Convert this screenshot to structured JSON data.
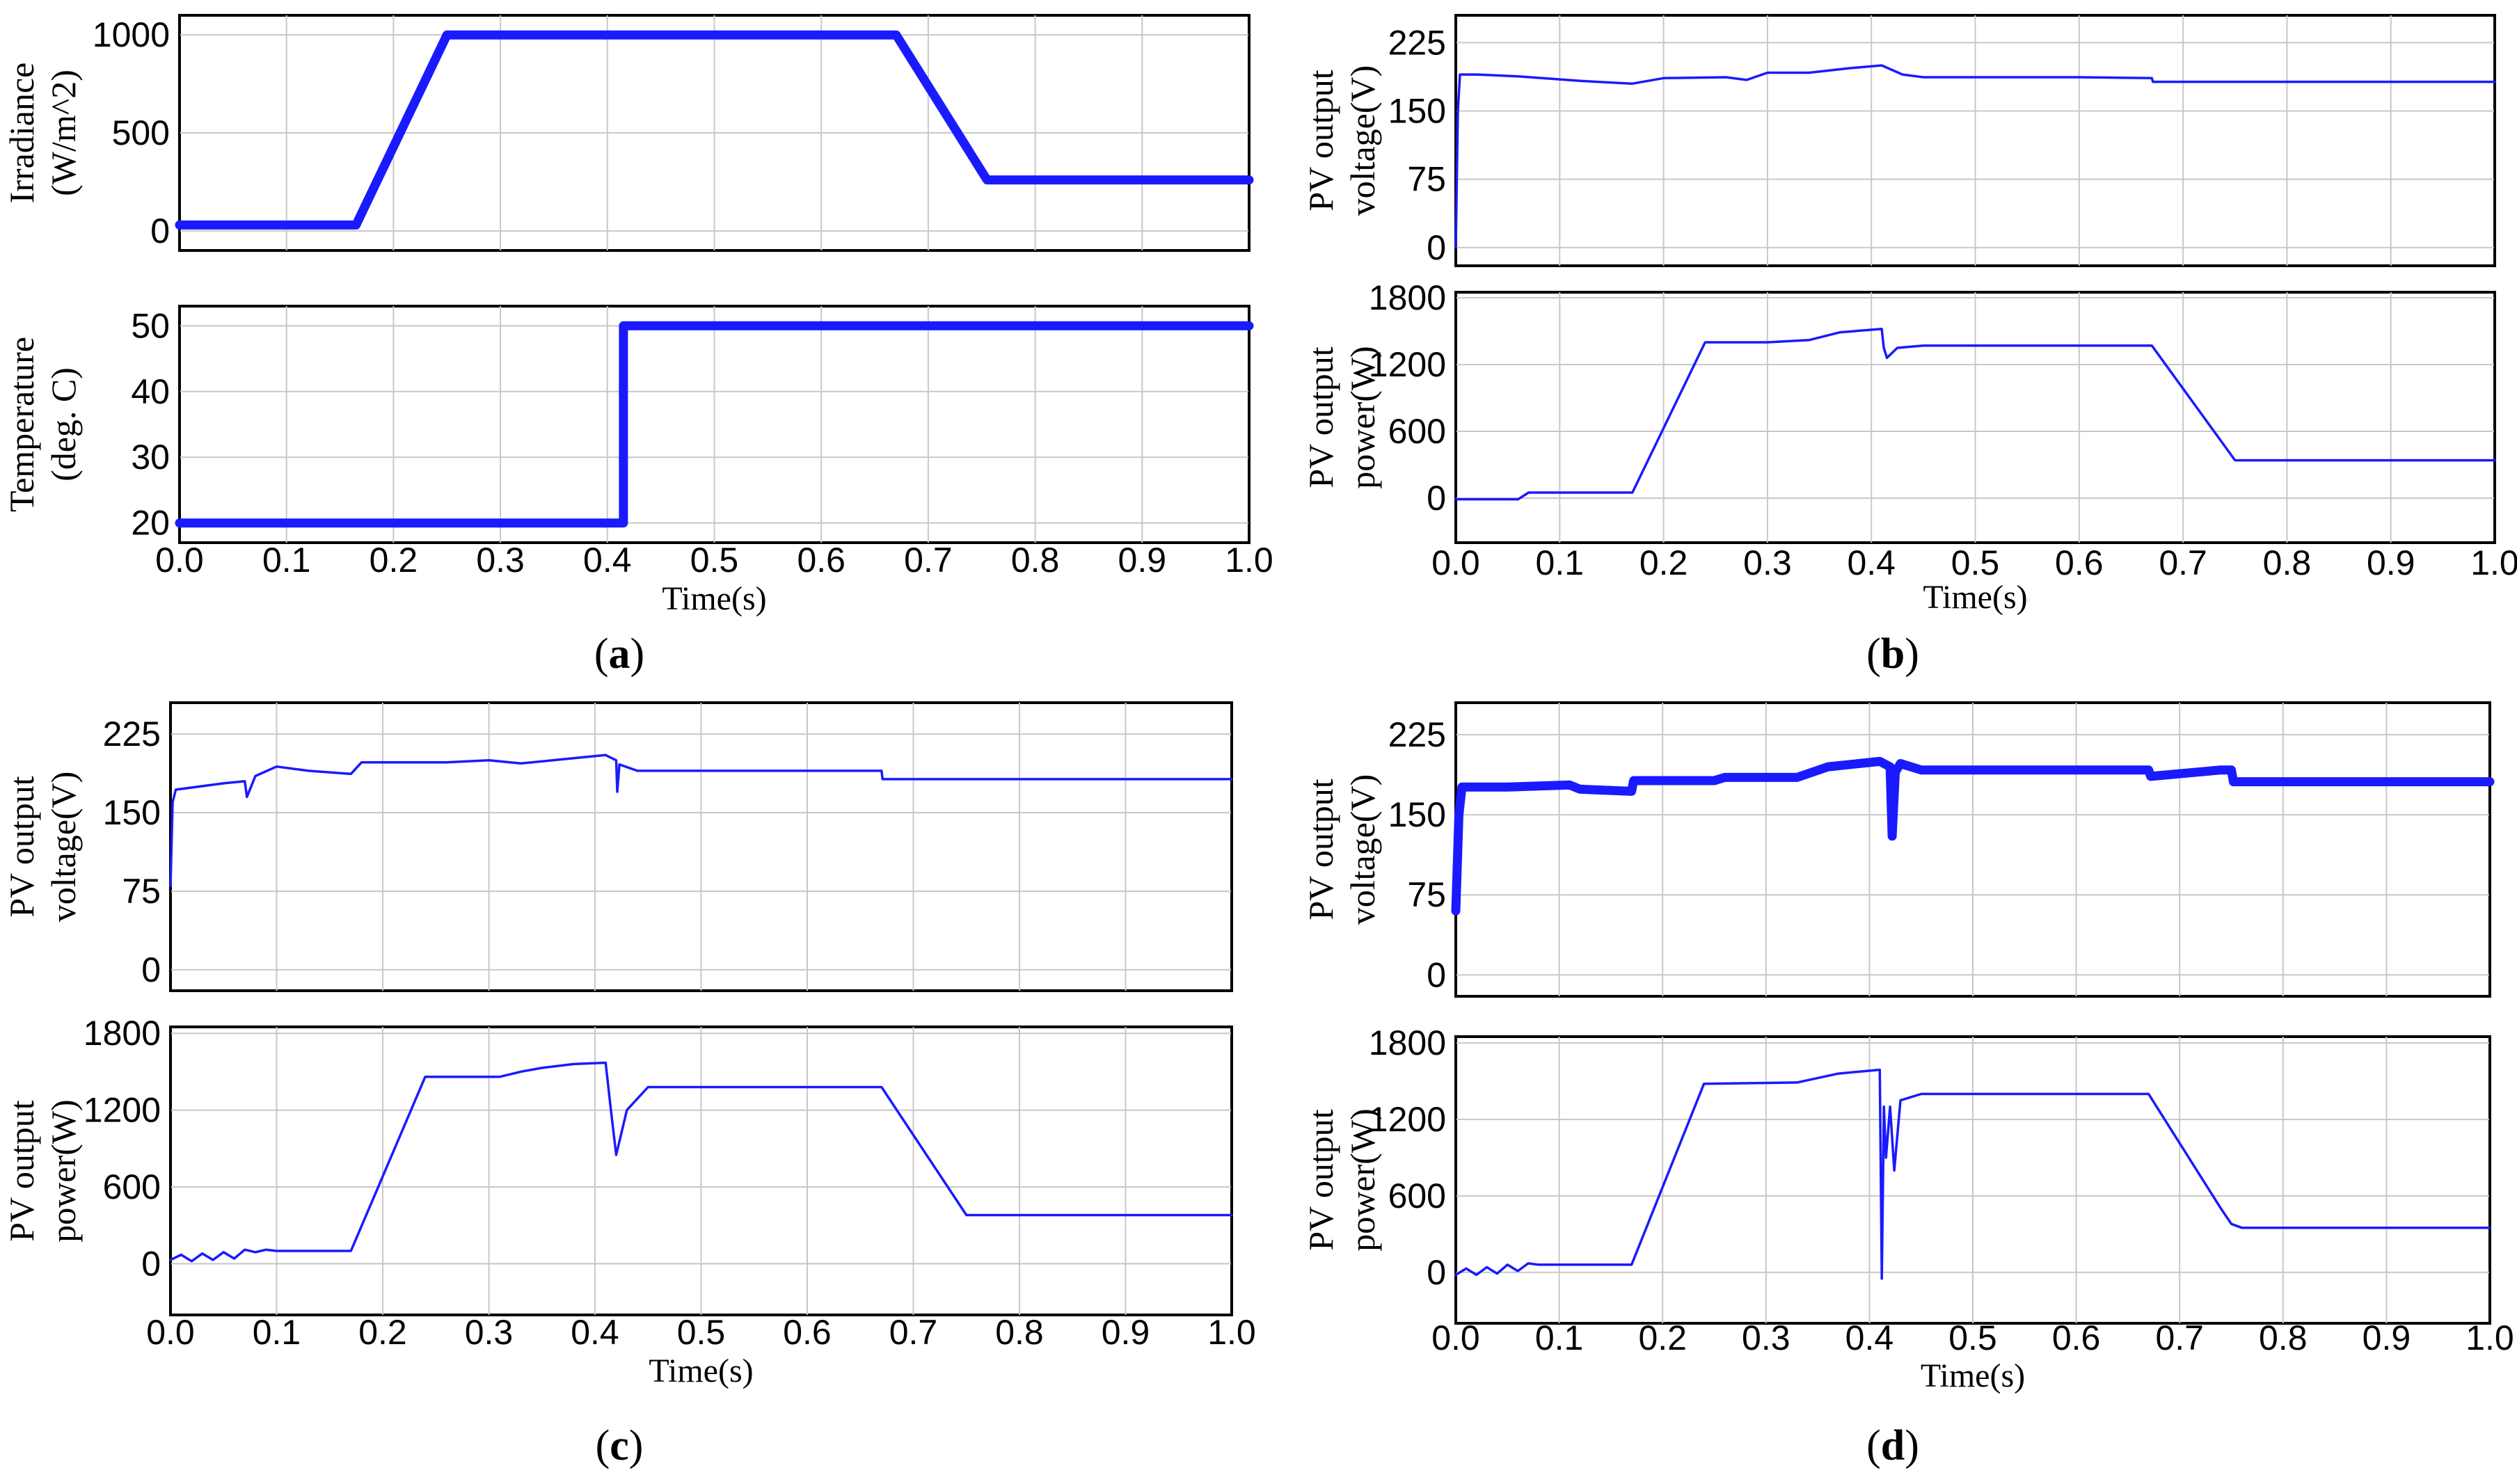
{
  "chart_data": [
    {
      "panel": "a",
      "type": "line",
      "panel_label": "a",
      "xlabel": "Time(s)",
      "xlim": [
        0,
        1.0
      ],
      "xticks": [
        "0.0",
        "0.1",
        "0.2",
        "0.3",
        "0.4",
        "0.5",
        "0.6",
        "0.7",
        "0.8",
        "0.9",
        "1.0"
      ],
      "subplots": [
        {
          "ylabel_lines": [
            "Irradiance",
            "(W/m^2)"
          ],
          "ylim": [
            -100,
            1100
          ],
          "yticks": [
            {
              "value": 0,
              "label": "0"
            },
            {
              "value": 500,
              "label": "500"
            },
            {
              "value": 1000,
              "label": "1000"
            }
          ],
          "series": [
            {
              "name": "Irradiance",
              "thick": true,
              "x": [
                0,
                0.165,
                0.25,
                0.67,
                0.755,
                1.0
              ],
              "y": [
                30,
                30,
                1000,
                1000,
                260,
                260
              ]
            }
          ]
        },
        {
          "ylabel_lines": [
            "Temperature",
            "(deg. C)"
          ],
          "ylim": [
            17,
            53
          ],
          "yticks": [
            {
              "value": 20,
              "label": "20"
            },
            {
              "value": 30,
              "label": "30"
            },
            {
              "value": 40,
              "label": "40"
            },
            {
              "value": 50,
              "label": "50"
            }
          ],
          "series": [
            {
              "name": "Temperature",
              "thick": true,
              "x": [
                0,
                0.415,
                0.415,
                1.0
              ],
              "y": [
                20,
                20,
                50,
                50
              ]
            }
          ]
        }
      ]
    },
    {
      "panel": "b",
      "type": "line",
      "panel_label": "b",
      "xlabel": "Time(s)",
      "xlim": [
        0,
        1.0
      ],
      "xticks": [
        "0.0",
        "0.1",
        "0.2",
        "0.3",
        "0.4",
        "0.5",
        "0.6",
        "0.7",
        "0.8",
        "0.9",
        "1.0"
      ],
      "subplots": [
        {
          "ylabel_lines": [
            "PV output",
            "voltage(V)"
          ],
          "ylim": [
            -20,
            255
          ],
          "yticks": [
            {
              "value": 0,
              "label": "0"
            },
            {
              "value": 75,
              "label": "75"
            },
            {
              "value": 150,
              "label": "150"
            },
            {
              "value": 225,
              "label": "225"
            }
          ],
          "series": [
            {
              "name": "PV output voltage",
              "x": [
                0,
                0.002,
                0.004,
                0.02,
                0.06,
                0.12,
                0.17,
                0.2,
                0.26,
                0.28,
                0.3,
                0.34,
                0.38,
                0.41,
                0.43,
                0.45,
                0.5,
                0.6,
                0.67,
                0.671,
                0.8,
                1.0
              ],
              "y": [
                0,
                150,
                190,
                190,
                188,
                183,
                180,
                186,
                187,
                184,
                192,
                192,
                197,
                200,
                190,
                187,
                187,
                187,
                186,
                182,
                182,
                182
              ]
            }
          ]
        },
        {
          "ylabel_lines": [
            "PV output",
            "power(W)"
          ],
          "ylim": [
            -400,
            1850
          ],
          "yticks": [
            {
              "value": 0,
              "label": "0"
            },
            {
              "value": 600,
              "label": "600"
            },
            {
              "value": 1200,
              "label": "1200"
            },
            {
              "value": 1800,
              "label": "1800"
            }
          ],
          "series": [
            {
              "name": "PV output power",
              "x": [
                0,
                0.06,
                0.07,
                0.17,
                0.24,
                0.3,
                0.34,
                0.37,
                0.41,
                0.412,
                0.415,
                0.425,
                0.45,
                0.6,
                0.67,
                0.75,
                1.0
              ],
              "y": [
                -10,
                -10,
                50,
                50,
                1400,
                1400,
                1420,
                1490,
                1520,
                1350,
                1260,
                1350,
                1370,
                1370,
                1370,
                340,
                340
              ]
            }
          ]
        }
      ]
    },
    {
      "panel": "c",
      "type": "line",
      "panel_label": "c",
      "xlabel": "Time(s)",
      "xlim": [
        0,
        1.0
      ],
      "xticks": [
        "0.0",
        "0.1",
        "0.2",
        "0.3",
        "0.4",
        "0.5",
        "0.6",
        "0.7",
        "0.8",
        "0.9",
        "1.0"
      ],
      "subplots": [
        {
          "ylabel_lines": [
            "PV output",
            "voltage(V)"
          ],
          "ylim": [
            -20,
            255
          ],
          "yticks": [
            {
              "value": 0,
              "label": "0"
            },
            {
              "value": 75,
              "label": "75"
            },
            {
              "value": 150,
              "label": "150"
            },
            {
              "value": 225,
              "label": "225"
            }
          ],
          "series": [
            {
              "name": "PV output voltage",
              "x": [
                0,
                0.002,
                0.005,
                0.05,
                0.07,
                0.072,
                0.08,
                0.1,
                0.13,
                0.17,
                0.18,
                0.2,
                0.26,
                0.3,
                0.33,
                0.38,
                0.41,
                0.42,
                0.421,
                0.423,
                0.44,
                0.5,
                0.67,
                0.671,
                0.8,
                1.0
              ],
              "y": [
                80,
                160,
                172,
                178,
                180,
                165,
                185,
                194,
                190,
                187,
                198,
                198,
                198,
                200,
                197,
                202,
                205,
                200,
                170,
                196,
                190,
                190,
                190,
                182,
                182,
                182
              ]
            }
          ]
        },
        {
          "ylabel_lines": [
            "PV output",
            "power(W)"
          ],
          "ylim": [
            -400,
            1850
          ],
          "yticks": [
            {
              "value": 0,
              "label": "0"
            },
            {
              "value": 600,
              "label": "600"
            },
            {
              "value": 1200,
              "label": "1200"
            },
            {
              "value": 1800,
              "label": "1800"
            }
          ],
          "series": [
            {
              "name": "PV output power",
              "x": [
                0,
                0.01,
                0.02,
                0.03,
                0.04,
                0.05,
                0.06,
                0.07,
                0.08,
                0.09,
                0.1,
                0.17,
                0.24,
                0.28,
                0.31,
                0.33,
                0.35,
                0.38,
                0.41,
                0.415,
                0.42,
                0.43,
                0.45,
                0.6,
                0.67,
                0.75,
                1.0
              ],
              "y": [
                30,
                70,
                20,
                80,
                30,
                90,
                40,
                110,
                90,
                110,
                100,
                100,
                1460,
                1460,
                1460,
                1500,
                1530,
                1560,
                1570,
                1200,
                850,
                1200,
                1380,
                1380,
                1380,
                380,
                380
              ]
            }
          ]
        }
      ]
    },
    {
      "panel": "d",
      "type": "line",
      "panel_label": "d",
      "xlabel": "Time(s)",
      "xlim": [
        0,
        1.0
      ],
      "xticks": [
        "0.0",
        "0.1",
        "0.2",
        "0.3",
        "0.4",
        "0.5",
        "0.6",
        "0.7",
        "0.8",
        "0.9",
        "1.0"
      ],
      "subplots": [
        {
          "ylabel_lines": [
            "PV output",
            "voltage(V)"
          ],
          "ylim": [
            -20,
            255
          ],
          "yticks": [
            {
              "value": 0,
              "label": "0"
            },
            {
              "value": 75,
              "label": "75"
            },
            {
              "value": 150,
              "label": "150"
            },
            {
              "value": 225,
              "label": "225"
            }
          ],
          "series": [
            {
              "name": "PV output voltage",
              "thick": true,
              "x": [
                0,
                0.003,
                0.006,
                0.05,
                0.11,
                0.12,
                0.17,
                0.172,
                0.25,
                0.26,
                0.33,
                0.36,
                0.41,
                0.42,
                0.422,
                0.425,
                0.43,
                0.45,
                0.67,
                0.672,
                0.74,
                0.75,
                0.752,
                1.0
              ],
              "y": [
                60,
                150,
                176,
                176,
                178,
                174,
                172,
                182,
                182,
                185,
                185,
                195,
                200,
                195,
                130,
                190,
                198,
                192,
                192,
                186,
                192,
                192,
                181,
                181
              ]
            }
          ]
        },
        {
          "ylabel_lines": [
            "PV output",
            "power(W)"
          ],
          "ylim": [
            -400,
            1850
          ],
          "yticks": [
            {
              "value": 0,
              "label": "0"
            },
            {
              "value": 600,
              "label": "600"
            },
            {
              "value": 1200,
              "label": "1200"
            },
            {
              "value": 1800,
              "label": "1800"
            }
          ],
          "series": [
            {
              "name": "PV output power",
              "x": [
                0,
                0.01,
                0.02,
                0.03,
                0.04,
                0.05,
                0.06,
                0.07,
                0.08,
                0.17,
                0.24,
                0.33,
                0.37,
                0.41,
                0.412,
                0.414,
                0.416,
                0.42,
                0.424,
                0.43,
                0.45,
                0.6,
                0.67,
                0.74,
                0.75,
                0.76,
                1.0
              ],
              "y": [
                -20,
                30,
                -20,
                40,
                -10,
                60,
                10,
                70,
                60,
                60,
                1480,
                1490,
                1560,
                1590,
                -50,
                1300,
                900,
                1300,
                800,
                1350,
                1400,
                1400,
                1400,
                500,
                380,
                350,
                350
              ]
            }
          ]
        }
      ]
    }
  ]
}
